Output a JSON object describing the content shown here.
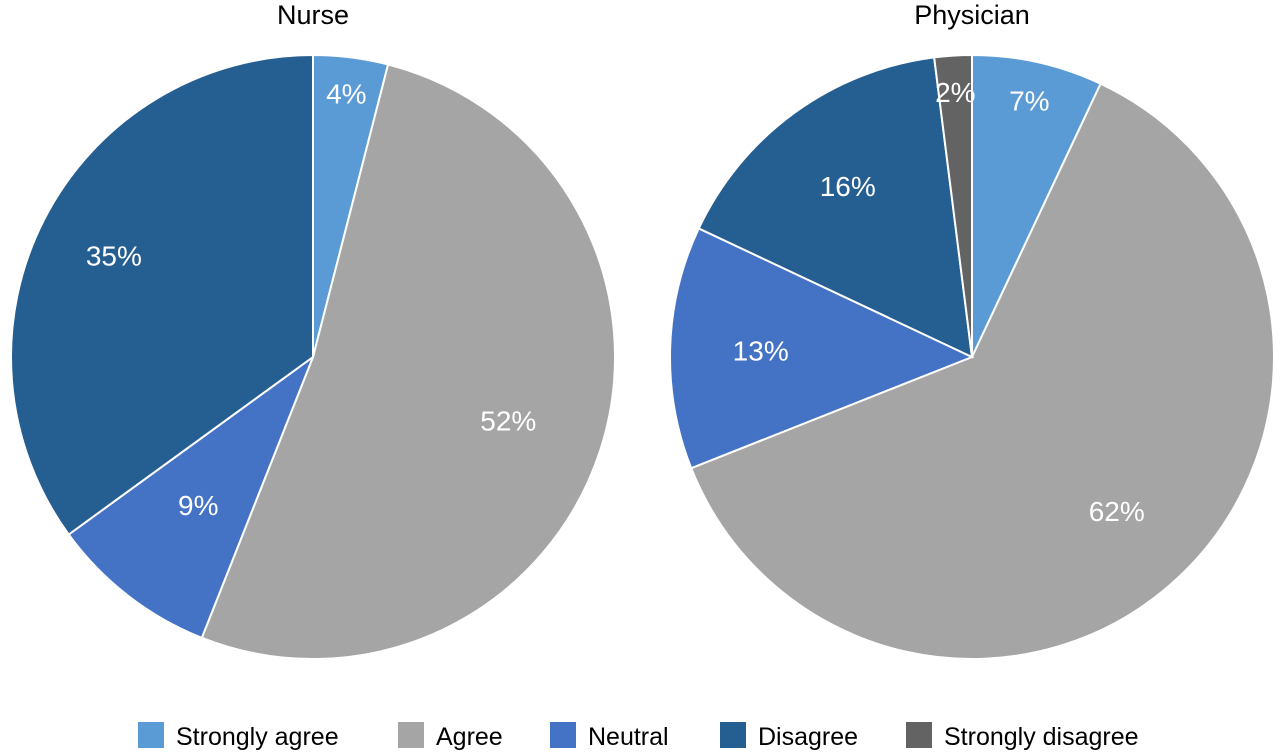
{
  "chart_data": [
    {
      "type": "pie",
      "title": "Nurse",
      "slices": [
        {
          "label": "Strongly agree",
          "value": 4,
          "display": "4%"
        },
        {
          "label": "Agree",
          "value": 52,
          "display": "52%"
        },
        {
          "label": "Neutral",
          "value": 9,
          "display": "9%"
        },
        {
          "label": "Disagree",
          "value": 35,
          "display": "35%"
        },
        {
          "label": "Strongly disagree",
          "value": 0,
          "display": ""
        }
      ]
    },
    {
      "type": "pie",
      "title": "Physician",
      "slices": [
        {
          "label": "Strongly agree",
          "value": 7,
          "display": "7%"
        },
        {
          "label": "Agree",
          "value": 62,
          "display": "62%"
        },
        {
          "label": "Neutral",
          "value": 13,
          "display": "13%"
        },
        {
          "label": "Disagree",
          "value": 16,
          "display": "16%"
        },
        {
          "label": "Strongly disagree",
          "value": 2,
          "display": "2%"
        }
      ]
    }
  ],
  "legend": {
    "placement": "bottom",
    "items": [
      {
        "label": "Strongly agree",
        "color": "#5b9bd5"
      },
      {
        "label": "Agree",
        "color": "#a5a5a5"
      },
      {
        "label": "Neutral",
        "color": "#4472c4"
      },
      {
        "label": "Disagree",
        "color": "#255e91"
      },
      {
        "label": "Strongly disagree",
        "color": "#636363"
      }
    ]
  }
}
